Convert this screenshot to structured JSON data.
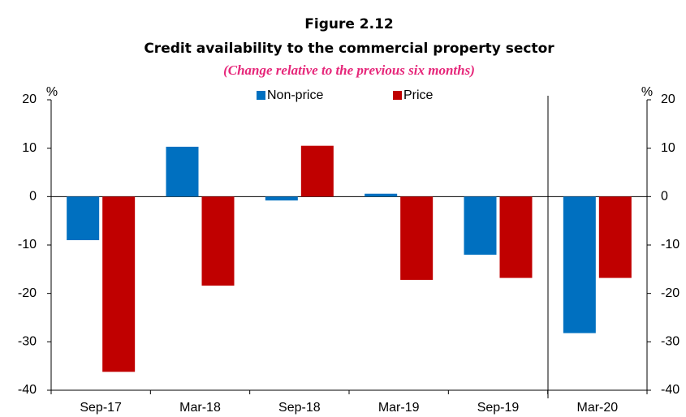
{
  "chart_data": {
    "type": "bar",
    "title": "Figure 2.12",
    "subtitle": "Credit availability to the commercial property sector",
    "note": "(Change relative to the previous six months)",
    "y_label": "%",
    "y2_label": "%",
    "categories": [
      "Sep-17",
      "Mar-18",
      "Sep-18",
      "Mar-19",
      "Sep-19",
      "Mar-20"
    ],
    "series": [
      {
        "name": "Non-price",
        "color": "#0070c0",
        "values": [
          -9,
          10.3,
          -0.8,
          0.6,
          -12,
          -28.2
        ]
      },
      {
        "name": "Price",
        "color": "#c00000",
        "values": [
          -36.2,
          -18.4,
          10.5,
          -17.2,
          -16.8,
          -16.8
        ]
      }
    ],
    "ylim": [
      -40,
      20
    ],
    "yticks": [
      -40,
      -30,
      -20,
      -10,
      0,
      10,
      20
    ],
    "y2lim": [
      -40,
      20
    ],
    "y2ticks": [
      -40,
      -30,
      -20,
      -10,
      0,
      10,
      20
    ],
    "legend": "top"
  }
}
